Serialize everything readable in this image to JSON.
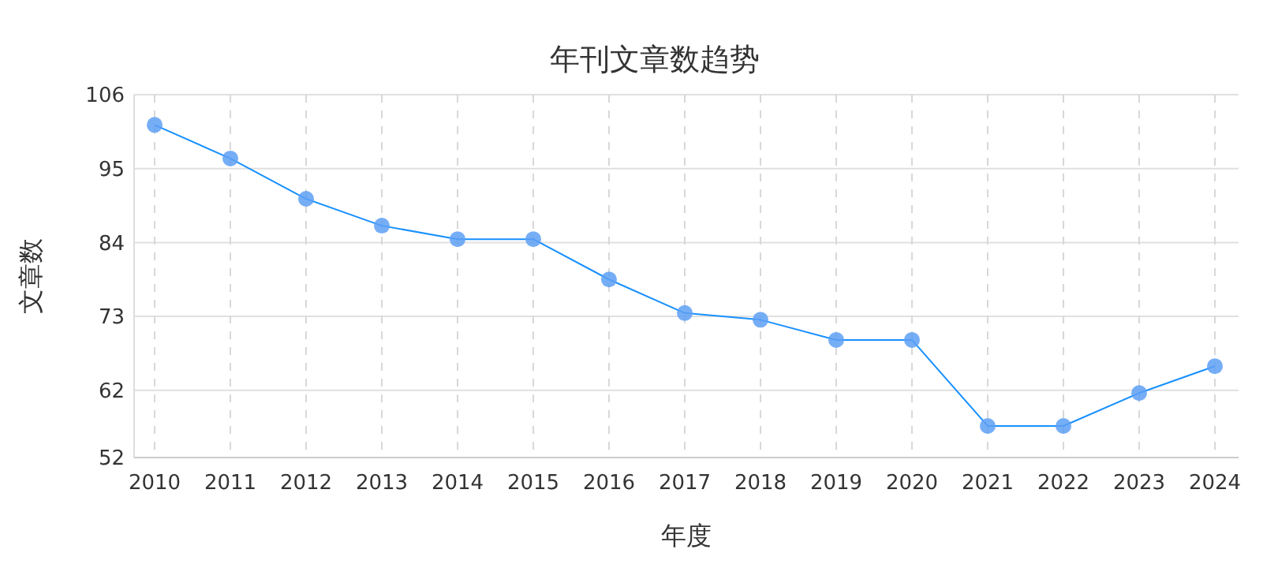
{
  "chart_data": {
    "type": "line",
    "title": "年刊文章数趋势",
    "xlabel": "年度",
    "ylabel": "文章数",
    "categories": [
      "2010",
      "2011",
      "2012",
      "2013",
      "2014",
      "2015",
      "2016",
      "2017",
      "2018",
      "2019",
      "2020",
      "2021",
      "2022",
      "2023",
      "2024"
    ],
    "series": [
      {
        "color": "#1890ff",
        "values": [
          101.5,
          96.5,
          90.5,
          86.5,
          84.5,
          84.5,
          78.5,
          73.5,
          72.5,
          69.5,
          69.5,
          56.7,
          56.7,
          61.6,
          65.6
        ]
      }
    ],
    "ylim": [
      52,
      106
    ],
    "yticks": [
      52,
      62,
      73,
      84,
      95,
      106
    ],
    "grid": true,
    "marker": "circle",
    "line_style": "solid"
  }
}
